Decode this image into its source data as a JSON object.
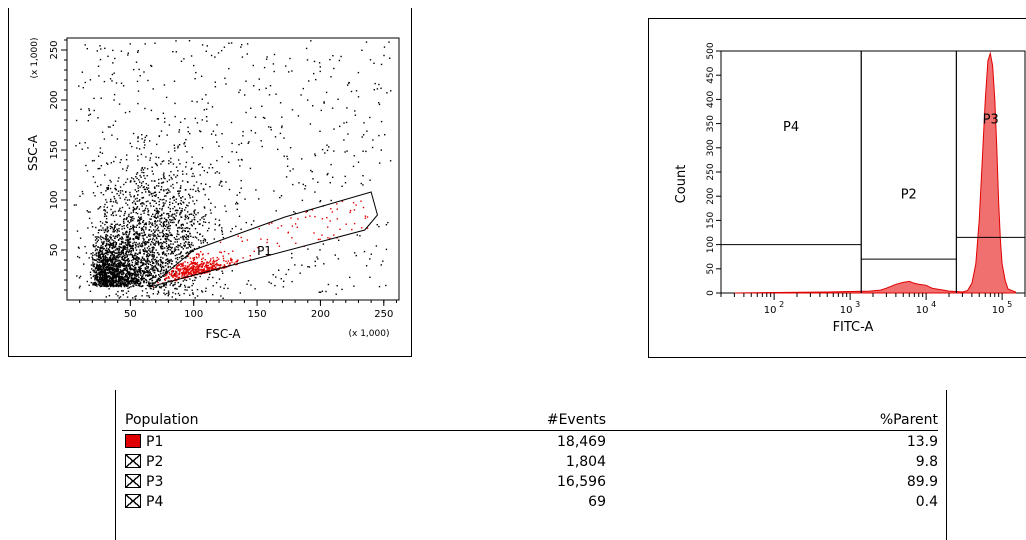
{
  "chart_data": [
    {
      "type": "scatter",
      "xlabel": "FSC-A",
      "ylabel": "SSC-A",
      "x_multiplier": "(x 1,000)",
      "y_multiplier": "(x 1,000)",
      "xlim": [
        0,
        262
      ],
      "ylim": [
        0,
        262
      ],
      "xticks": [
        50,
        100,
        150,
        200,
        250
      ],
      "yticks": [
        50,
        100,
        150,
        200,
        250
      ],
      "gate": {
        "name": "P1",
        "color": "#e00000",
        "polygon": [
          [
            65,
            13
          ],
          [
            235,
            70
          ],
          [
            245,
            85
          ],
          [
            240,
            108
          ],
          [
            172,
            83
          ],
          [
            100,
            50
          ]
        ]
      },
      "population_colors": {
        "ungated": "#000000",
        "P1": "#e00000"
      }
    },
    {
      "type": "area",
      "xlabel": "FITC-A",
      "ylabel": "Count",
      "xscale": "log",
      "xlim": [
        20,
        200000
      ],
      "ylim": [
        0,
        500
      ],
      "xticks": [
        "10^2",
        "10^3",
        "10^4",
        "10^5"
      ],
      "yticks": [
        0,
        50,
        100,
        150,
        200,
        250,
        300,
        350,
        400,
        450,
        500
      ],
      "fill_color": "#f07070",
      "line_color": "#e00000",
      "series": [
        {
          "x": [
            30,
            100,
            500,
            1000,
            1800,
            2500,
            3000,
            4000,
            5000,
            6000,
            7000,
            8000,
            10000,
            12000,
            14000,
            17000,
            20000,
            25000,
            30000,
            35000,
            40000,
            45000,
            50000,
            55000,
            60000,
            65000,
            70000,
            75000,
            80000,
            85000,
            90000,
            95000,
            100000,
            110000,
            120000,
            150000
          ],
          "y": [
            0,
            1,
            2,
            3,
            4,
            6,
            10,
            18,
            22,
            24,
            20,
            18,
            16,
            10,
            8,
            6,
            4,
            3,
            2,
            5,
            20,
            60,
            150,
            280,
            400,
            480,
            495,
            470,
            400,
            300,
            190,
            110,
            60,
            25,
            8,
            2
          ]
        }
      ],
      "gates": [
        {
          "name": "P4",
          "x_range": [
            20,
            1400
          ],
          "label_y": 335
        },
        {
          "name": "P2",
          "x_range": [
            1400,
            25000
          ],
          "label_y": 195
        },
        {
          "name": "P3",
          "x_range": [
            25000,
            200000
          ],
          "label_y": 350
        }
      ]
    }
  ],
  "stats_table": {
    "headers": [
      "Population",
      "#Events",
      "%Parent"
    ],
    "rows": [
      {
        "name": "P1",
        "events": "18,469",
        "parent": "13.9",
        "marker": "filled"
      },
      {
        "name": "P2",
        "events": "1,804",
        "parent": "9.8",
        "marker": "crossed"
      },
      {
        "name": "P3",
        "events": "16,596",
        "parent": "89.9",
        "marker": "crossed"
      },
      {
        "name": "P4",
        "events": "69",
        "parent": "0.4",
        "marker": "crossed"
      }
    ]
  }
}
